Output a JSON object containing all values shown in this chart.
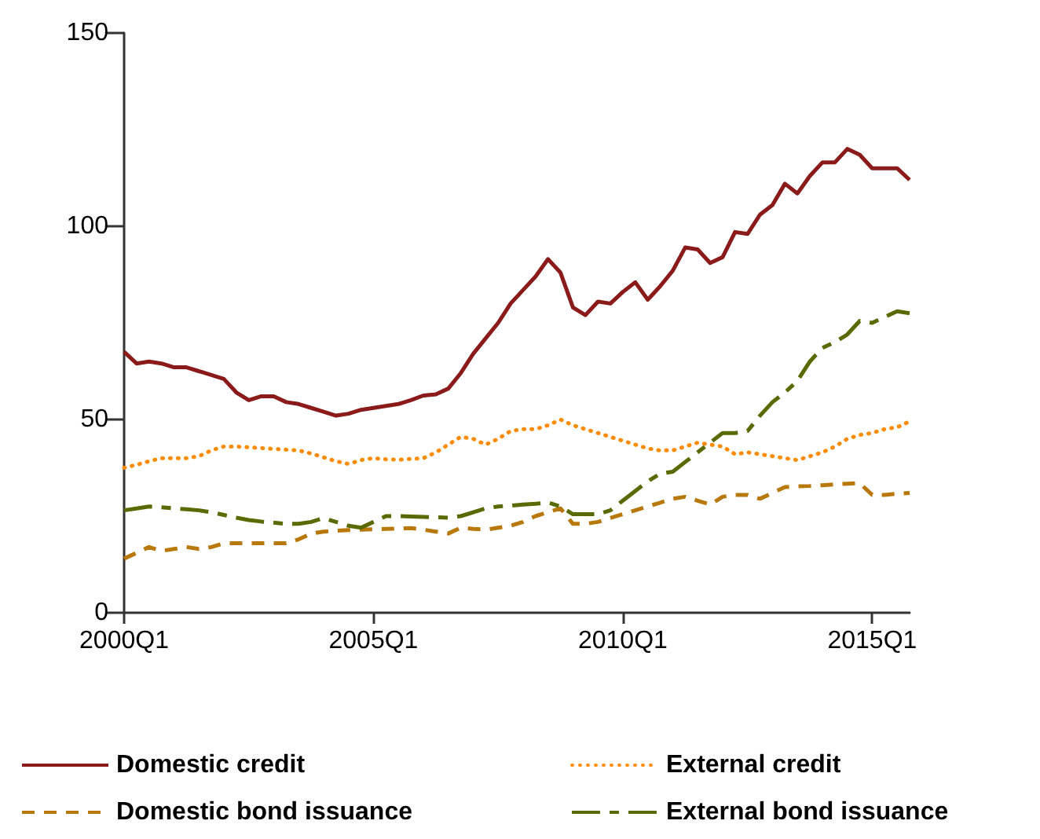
{
  "chart_data": {
    "type": "line",
    "categories": [
      "2000Q1",
      null,
      null,
      null,
      null,
      null,
      null,
      null,
      null,
      null,
      null,
      null,
      null,
      null,
      null,
      null,
      null,
      null,
      null,
      null,
      "2005Q1",
      null,
      null,
      null,
      null,
      null,
      null,
      null,
      null,
      null,
      null,
      null,
      null,
      null,
      null,
      null,
      null,
      null,
      null,
      null,
      "2010Q1",
      null,
      null,
      null,
      null,
      null,
      null,
      null,
      null,
      null,
      null,
      null,
      null,
      null,
      null,
      null,
      null,
      null,
      null,
      null,
      "2015Q1",
      null,
      null,
      null
    ],
    "ylim": [
      0,
      150
    ],
    "yticks": [
      0,
      50,
      100,
      150
    ],
    "grid": false,
    "legend": "bottom",
    "marker": "none",
    "series": [
      {
        "name": "Domestic credit",
        "color": "#8b1a1a",
        "line_style": "solid",
        "values": [
          67.5,
          64.5,
          65,
          64.5,
          63.5,
          63.5,
          62.5,
          61.5,
          60.5,
          57,
          55,
          56,
          56,
          54.5,
          54,
          53,
          52,
          51,
          51.5,
          52.5,
          53,
          53.5,
          54,
          55,
          56.2,
          56.5,
          58,
          62,
          67,
          71,
          75,
          80,
          83.5,
          87,
          91.5,
          88,
          79,
          77,
          80.5,
          80,
          83,
          85.5,
          81,
          84.5,
          88.5,
          94.5,
          94,
          90.5,
          92,
          98.5,
          98,
          103,
          105.5,
          111,
          108.5,
          113,
          116.5,
          116.5,
          120,
          118.5,
          115,
          115,
          115,
          112
        ]
      },
      {
        "name": "External credit",
        "color": "#ff8c00",
        "line_style": "dotted",
        "values": [
          37.5,
          38.3,
          39.2,
          40,
          40,
          40,
          40.5,
          42,
          43,
          43,
          42.8,
          42.6,
          42.4,
          42.2,
          42,
          41.2,
          40.2,
          39.2,
          38.5,
          39.5,
          40,
          39.7,
          39.6,
          39.8,
          40,
          41.5,
          43.5,
          45.5,
          45,
          43.5,
          45,
          47,
          47.5,
          47.5,
          48.5,
          50,
          48.5,
          47.5,
          46.5,
          45.5,
          44.5,
          43.5,
          42.5,
          42,
          42,
          43,
          44,
          43.5,
          43,
          41,
          41.5,
          41,
          40.5,
          40,
          39.5,
          40.5,
          41.5,
          43,
          45,
          46,
          46.5,
          47.5,
          48,
          49.5
        ]
      },
      {
        "name": "Domestic bond issuance",
        "color": "#b8780a",
        "line_style": "dashed",
        "values": [
          14,
          15.5,
          17,
          16,
          16.5,
          17,
          16.5,
          17,
          18,
          18,
          18,
          18,
          18,
          18,
          19,
          20.5,
          21,
          21.2,
          21.4,
          21.5,
          21.6,
          21.7,
          21.8,
          21.9,
          21.5,
          21,
          20.5,
          22,
          21.7,
          21.5,
          22,
          22.5,
          23.5,
          25,
          26,
          27,
          23,
          23,
          23.5,
          24.5,
          25.5,
          26.5,
          27.5,
          28.5,
          29.5,
          30,
          29,
          28,
          30,
          30.5,
          30.5,
          29.5,
          31,
          32.5,
          32.7,
          32.8,
          33,
          33.2,
          33.4,
          33.5,
          30.5,
          30.5,
          30.8,
          31
        ]
      },
      {
        "name": "External bond issuance",
        "color": "#5a6a00",
        "line_style": "dashdot",
        "values": [
          26.5,
          27,
          27.5,
          27.3,
          27,
          26.8,
          26.5,
          26,
          25.3,
          24.6,
          24,
          23.6,
          23.3,
          23,
          23,
          23.5,
          24.5,
          23.5,
          22.5,
          22,
          23.5,
          25,
          25,
          24.9,
          24.8,
          24.7,
          24.6,
          25,
          26,
          27,
          27.5,
          27.7,
          28,
          28.2,
          28.5,
          27.5,
          25.5,
          25.5,
          25.5,
          26.5,
          29,
          31.5,
          34,
          36,
          36.5,
          39,
          41.5,
          44,
          46.5,
          46.5,
          47,
          51,
          54.5,
          57,
          60,
          65,
          68.5,
          70,
          72,
          75.5,
          75,
          76.5,
          78,
          77.5
        ]
      }
    ]
  }
}
